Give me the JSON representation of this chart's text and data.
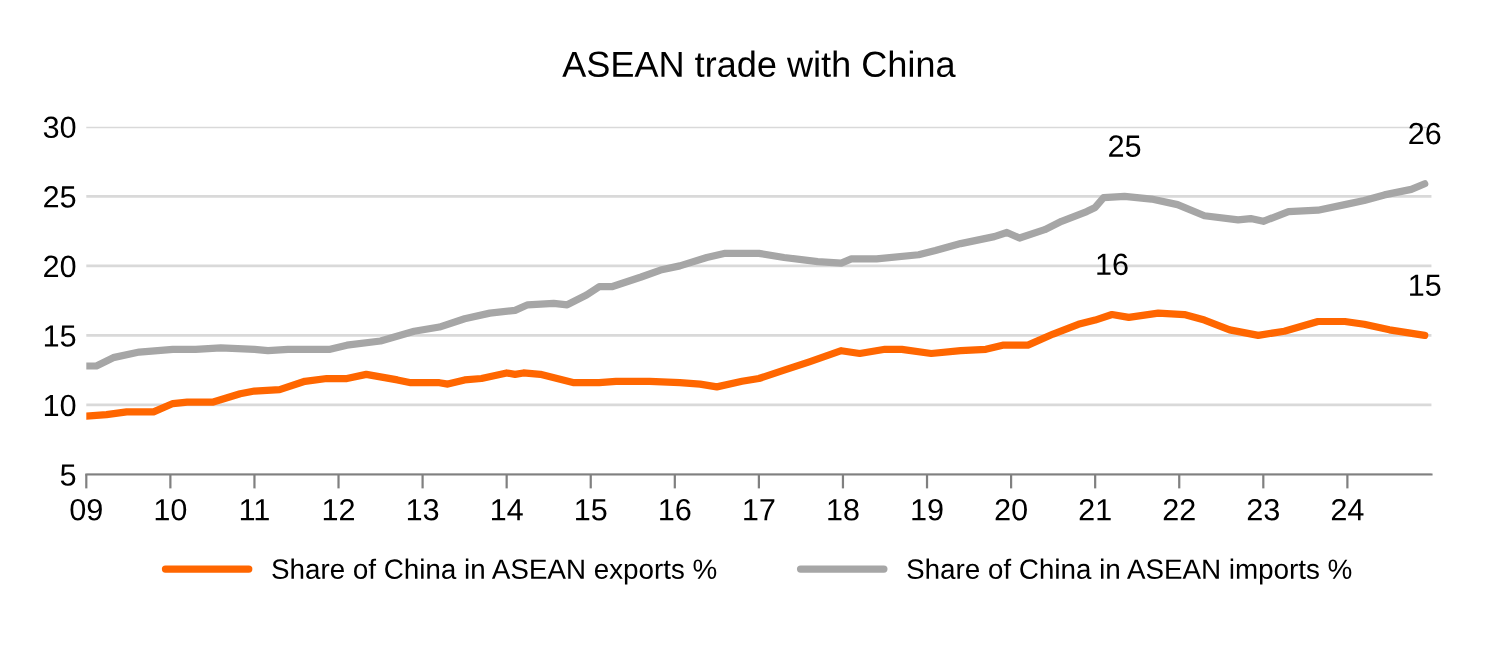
{
  "chart_data": {
    "type": "line",
    "title": "ASEAN trade with China",
    "xlim": [
      2009,
      2025
    ],
    "xticks": [
      {
        "value": 2009,
        "label": "09"
      },
      {
        "value": 2010,
        "label": "10"
      },
      {
        "value": 2011,
        "label": "11"
      },
      {
        "value": 2012,
        "label": "12"
      },
      {
        "value": 2013,
        "label": "13"
      },
      {
        "value": 2014,
        "label": "14"
      },
      {
        "value": 2015,
        "label": "15"
      },
      {
        "value": 2016,
        "label": "16"
      },
      {
        "value": 2017,
        "label": "17"
      },
      {
        "value": 2018,
        "label": "18"
      },
      {
        "value": 2019,
        "label": "19"
      },
      {
        "value": 2020,
        "label": "20"
      },
      {
        "value": 2021,
        "label": "21"
      },
      {
        "value": 2022,
        "label": "22"
      },
      {
        "value": 2023,
        "label": "23"
      },
      {
        "value": 2024,
        "label": "24"
      }
    ],
    "ylim": [
      5,
      30
    ],
    "yticks": [
      5,
      10,
      15,
      20,
      25,
      30
    ],
    "grid": "y",
    "legend": "bottom",
    "marker": "none",
    "line_style": "solid",
    "series": [
      {
        "name": "Share of China in ASEAN exports %",
        "color": "#ff6600",
        "x": [
          2009.0,
          2009.24,
          2009.48,
          2009.8,
          2010.03,
          2010.2,
          2010.5,
          2010.83,
          2011.0,
          2011.3,
          2011.6,
          2011.86,
          2012.1,
          2012.33,
          2012.7,
          2012.86,
          2013.2,
          2013.3,
          2013.5,
          2013.7,
          2014.0,
          2014.1,
          2014.2,
          2014.4,
          2014.8,
          2015.1,
          2015.3,
          2015.7,
          2016.06,
          2016.3,
          2016.5,
          2016.8,
          2017.0,
          2017.3,
          2017.6,
          2017.98,
          2018.2,
          2018.5,
          2018.7,
          2019.05,
          2019.4,
          2019.7,
          2019.9,
          2020.2,
          2020.5,
          2020.8,
          2021.0,
          2021.2,
          2021.4,
          2021.75,
          2022.06,
          2022.3,
          2022.6,
          2022.94,
          2023.25,
          2023.65,
          2023.97,
          2024.2,
          2024.5,
          2024.92
        ],
        "values": [
          9.2,
          9.3,
          9.5,
          9.5,
          10.1,
          10.2,
          10.2,
          10.8,
          11.0,
          11.1,
          11.7,
          11.9,
          11.9,
          12.2,
          11.8,
          11.6,
          11.6,
          11.5,
          11.8,
          11.9,
          12.3,
          12.2,
          12.3,
          12.2,
          11.6,
          11.6,
          11.7,
          11.7,
          11.6,
          11.5,
          11.3,
          11.7,
          11.9,
          12.5,
          13.1,
          13.9,
          13.7,
          14.0,
          14.0,
          13.7,
          13.9,
          14.0,
          14.3,
          14.3,
          15.1,
          15.8,
          16.1,
          16.5,
          16.3,
          16.6,
          16.5,
          16.1,
          15.4,
          15.0,
          15.3,
          16.0,
          16.0,
          15.8,
          15.4,
          15.0
        ]
      },
      {
        "name": "Share of China in ASEAN imports %",
        "color": "#a6a6a6",
        "x": [
          2009.0,
          2009.12,
          2009.32,
          2009.63,
          2010.03,
          2010.3,
          2010.6,
          2011.0,
          2011.16,
          2011.4,
          2011.9,
          2012.1,
          2012.5,
          2012.9,
          2013.2,
          2013.5,
          2013.8,
          2014.1,
          2014.25,
          2014.56,
          2014.72,
          2014.95,
          2015.1,
          2015.25,
          2015.6,
          2015.83,
          2016.06,
          2016.38,
          2016.6,
          2016.76,
          2017.0,
          2017.3,
          2017.7,
          2017.98,
          2018.1,
          2018.4,
          2018.9,
          2019.1,
          2019.4,
          2019.8,
          2019.95,
          2020.1,
          2020.4,
          2020.6,
          2020.9,
          2021.0,
          2021.1,
          2021.35,
          2021.67,
          2021.98,
          2022.3,
          2022.7,
          2022.85,
          2023.0,
          2023.3,
          2023.65,
          2023.97,
          2024.2,
          2024.44,
          2024.76,
          2024.92
        ],
        "values": [
          12.8,
          12.8,
          13.4,
          13.8,
          14.0,
          14.0,
          14.1,
          14.0,
          13.9,
          14.0,
          14.0,
          14.3,
          14.6,
          15.3,
          15.6,
          16.2,
          16.6,
          16.8,
          17.2,
          17.3,
          17.2,
          17.9,
          18.5,
          18.5,
          19.2,
          19.7,
          20.0,
          20.6,
          20.9,
          20.9,
          20.9,
          20.6,
          20.3,
          20.2,
          20.5,
          20.5,
          20.8,
          21.1,
          21.6,
          22.1,
          22.4,
          22.0,
          22.6,
          23.2,
          23.9,
          24.2,
          24.9,
          25.0,
          24.8,
          24.4,
          23.6,
          23.3,
          23.4,
          23.2,
          23.9,
          24.0,
          24.4,
          24.7,
          25.1,
          25.5,
          25.9
        ]
      }
    ],
    "annotations": [
      {
        "text": "25",
        "x": 2021.35,
        "y": 25.0
      },
      {
        "text": "16",
        "x": 2021.2,
        "y": 16.5
      },
      {
        "text": "26",
        "x": 2024.92,
        "y": 25.9
      },
      {
        "text": "15",
        "x": 2024.92,
        "y": 15.0
      }
    ]
  }
}
